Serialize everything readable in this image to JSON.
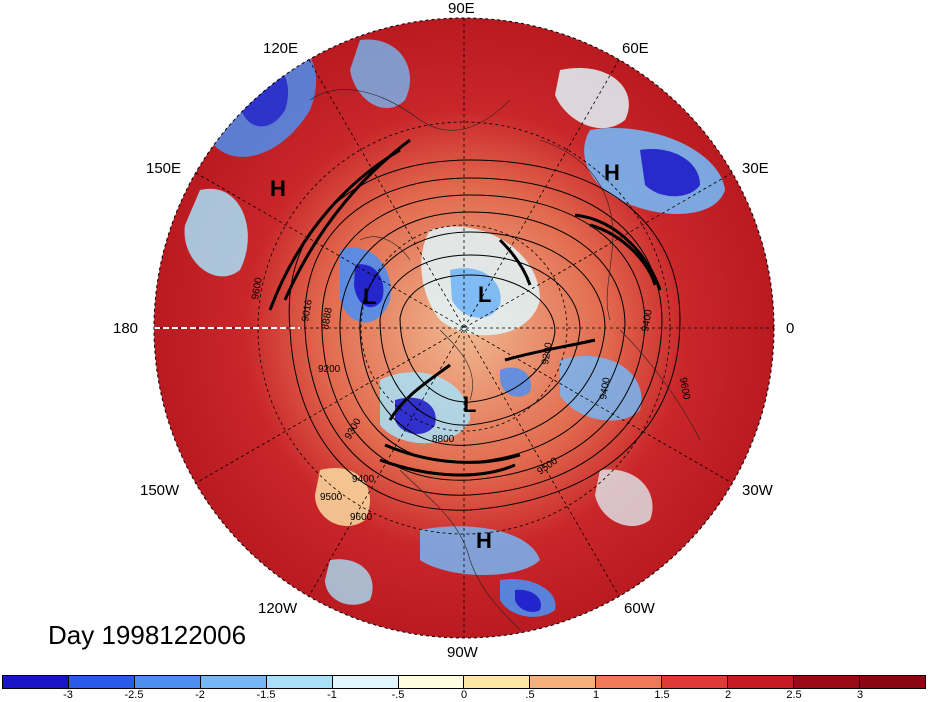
{
  "title": "Day 1998122006",
  "longitude_labels": {
    "n90E": "90E",
    "n60E": "60E",
    "n120E": "120E",
    "n30E": "30E",
    "n150E": "150E",
    "n180": "180",
    "n0": "0",
    "n150W": "150W",
    "n30W": "30W",
    "n120W": "120W",
    "n60W": "60W",
    "n90W": "90W"
  },
  "pressure_centers": {
    "h1": "H",
    "h2": "H",
    "h3": "H",
    "l1": "L",
    "l2": "L",
    "l3": "L"
  },
  "contour_labels": [
    "9600",
    "9016",
    "8888",
    "9200",
    "9300",
    "9400",
    "8800",
    "9500",
    "9600",
    "9400",
    "9500",
    "9400",
    "9600",
    "9200"
  ],
  "colorbar": {
    "ticks": [
      "-3",
      "-2.5",
      "-2",
      "-1.5",
      "-1",
      "-.5",
      "0",
      ".5",
      "1",
      "1.5",
      "2",
      "2.5",
      "3"
    ],
    "colors": [
      "#1a14c8",
      "#2c5ae8",
      "#4e8ef0",
      "#76b6f4",
      "#a8e0f8",
      "#e0f6fa",
      "#fffde0",
      "#fde6a8",
      "#f6b07c",
      "#ee7a5a",
      "#e03a36",
      "#c41a22",
      "#9a0a16",
      "#8a0612"
    ]
  }
}
